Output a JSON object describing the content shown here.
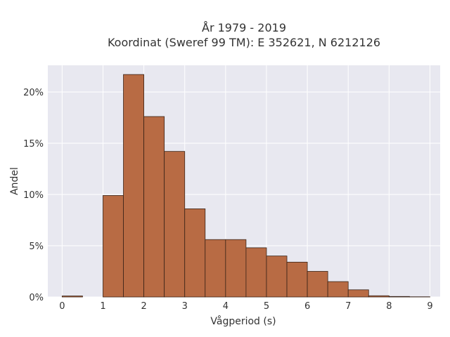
{
  "chart_data": {
    "type": "bar",
    "title_lines": [
      "År 1979 - 2019",
      "Koordinat (Sweref 99 TM): E 352621, N 6212126"
    ],
    "xlabel": "Vågperiod (s)",
    "ylabel": "Andel",
    "bin_width": 0.5,
    "bin_starts": [
      0,
      0.5,
      1.0,
      1.5,
      2.0,
      2.5,
      3.0,
      3.5,
      4.0,
      4.5,
      5.0,
      5.5,
      6.0,
      6.5,
      7.0,
      7.5,
      8.0,
      8.5
    ],
    "values": [
      0.1,
      0,
      9.9,
      21.7,
      17.6,
      14.2,
      8.6,
      5.6,
      5.6,
      4.8,
      4.0,
      3.4,
      2.5,
      1.5,
      0.7,
      0.12,
      0.05,
      0.02
    ],
    "xlim": [
      -0.35,
      9.25
    ],
    "ylim": [
      0,
      22.6
    ],
    "xticks": [
      0,
      1,
      2,
      3,
      4,
      5,
      6,
      7,
      8,
      9
    ],
    "xtick_labels": [
      "0",
      "1",
      "2",
      "3",
      "4",
      "5",
      "6",
      "7",
      "8",
      "9"
    ],
    "yticks": [
      0,
      5,
      10,
      15,
      20
    ],
    "ytick_labels": [
      "0%",
      "5%",
      "10%",
      "15%",
      "20%"
    ],
    "grid": true,
    "bar_color": "#b86b44",
    "bar_edge_color": "#3a2418",
    "plot_background": "#e8e8f0"
  }
}
